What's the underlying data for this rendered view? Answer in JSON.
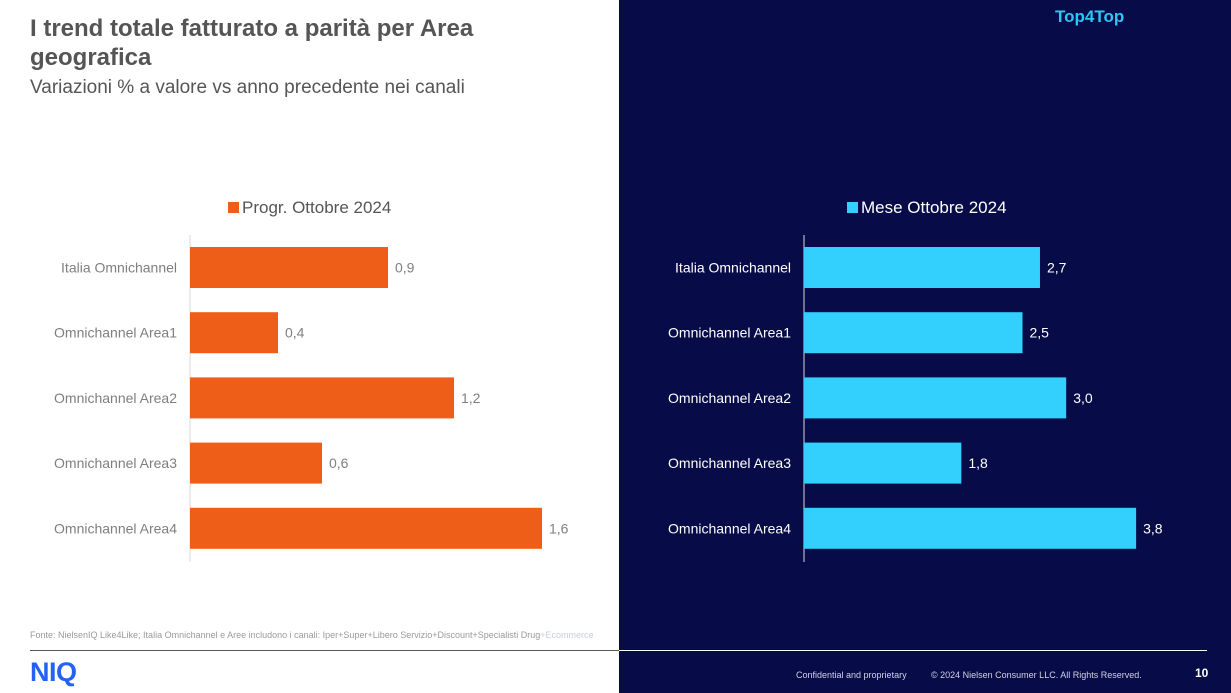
{
  "header": {
    "title": "I trend totale fatturato a parità per Area geografica",
    "subtitle": "Variazioni % a valore vs anno precedente nei canali",
    "brand_tag": "Top4Top"
  },
  "colors": {
    "orange": "#ee5e19",
    "cyan": "#33d0fd",
    "navy": "#070b47"
  },
  "chart_data": [
    {
      "type": "bar",
      "orientation": "horizontal",
      "legend": "Progr. Ottobre 2024",
      "legend_position": "top",
      "categories": [
        "Italia Omnichannel",
        "Omnichannel Area1",
        "Omnichannel Area2",
        "Omnichannel Area3",
        "Omnichannel Area4"
      ],
      "values": [
        0.9,
        0.4,
        1.2,
        0.6,
        1.6
      ],
      "data_labels": [
        "0,9",
        "0,4",
        "1,2",
        "0,6",
        "1,6"
      ],
      "xlim": [
        0,
        1.7
      ],
      "grid": false,
      "color": "#ee5e19"
    },
    {
      "type": "bar",
      "orientation": "horizontal",
      "legend": "Mese Ottobre 2024",
      "legend_position": "top",
      "categories": [
        "Italia Omnichannel",
        "Omnichannel Area1",
        "Omnichannel Area2",
        "Omnichannel Area3",
        "Omnichannel Area4"
      ],
      "values": [
        2.7,
        2.5,
        3.0,
        1.8,
        3.8
      ],
      "data_labels": [
        "2,7",
        "2,5",
        "3,0",
        "1,8",
        "3,8"
      ],
      "xlim": [
        0,
        4.2
      ],
      "grid": false,
      "color": "#33d0fd"
    }
  ],
  "footer": {
    "source_prefix": "Fonte: NielsenIQ Like4Like; Italia Omnichannel e Aree includono i canali: Iper+Super+Libero Servizio+Discount+Specialisti Drug",
    "source_suffix": "+Ecommerce",
    "logo": "NIQ",
    "confidential": "Confidential and proprietary",
    "copyright": "© 2024 Nielsen Consumer LLC. All Rights Reserved.",
    "page_number": "10"
  }
}
